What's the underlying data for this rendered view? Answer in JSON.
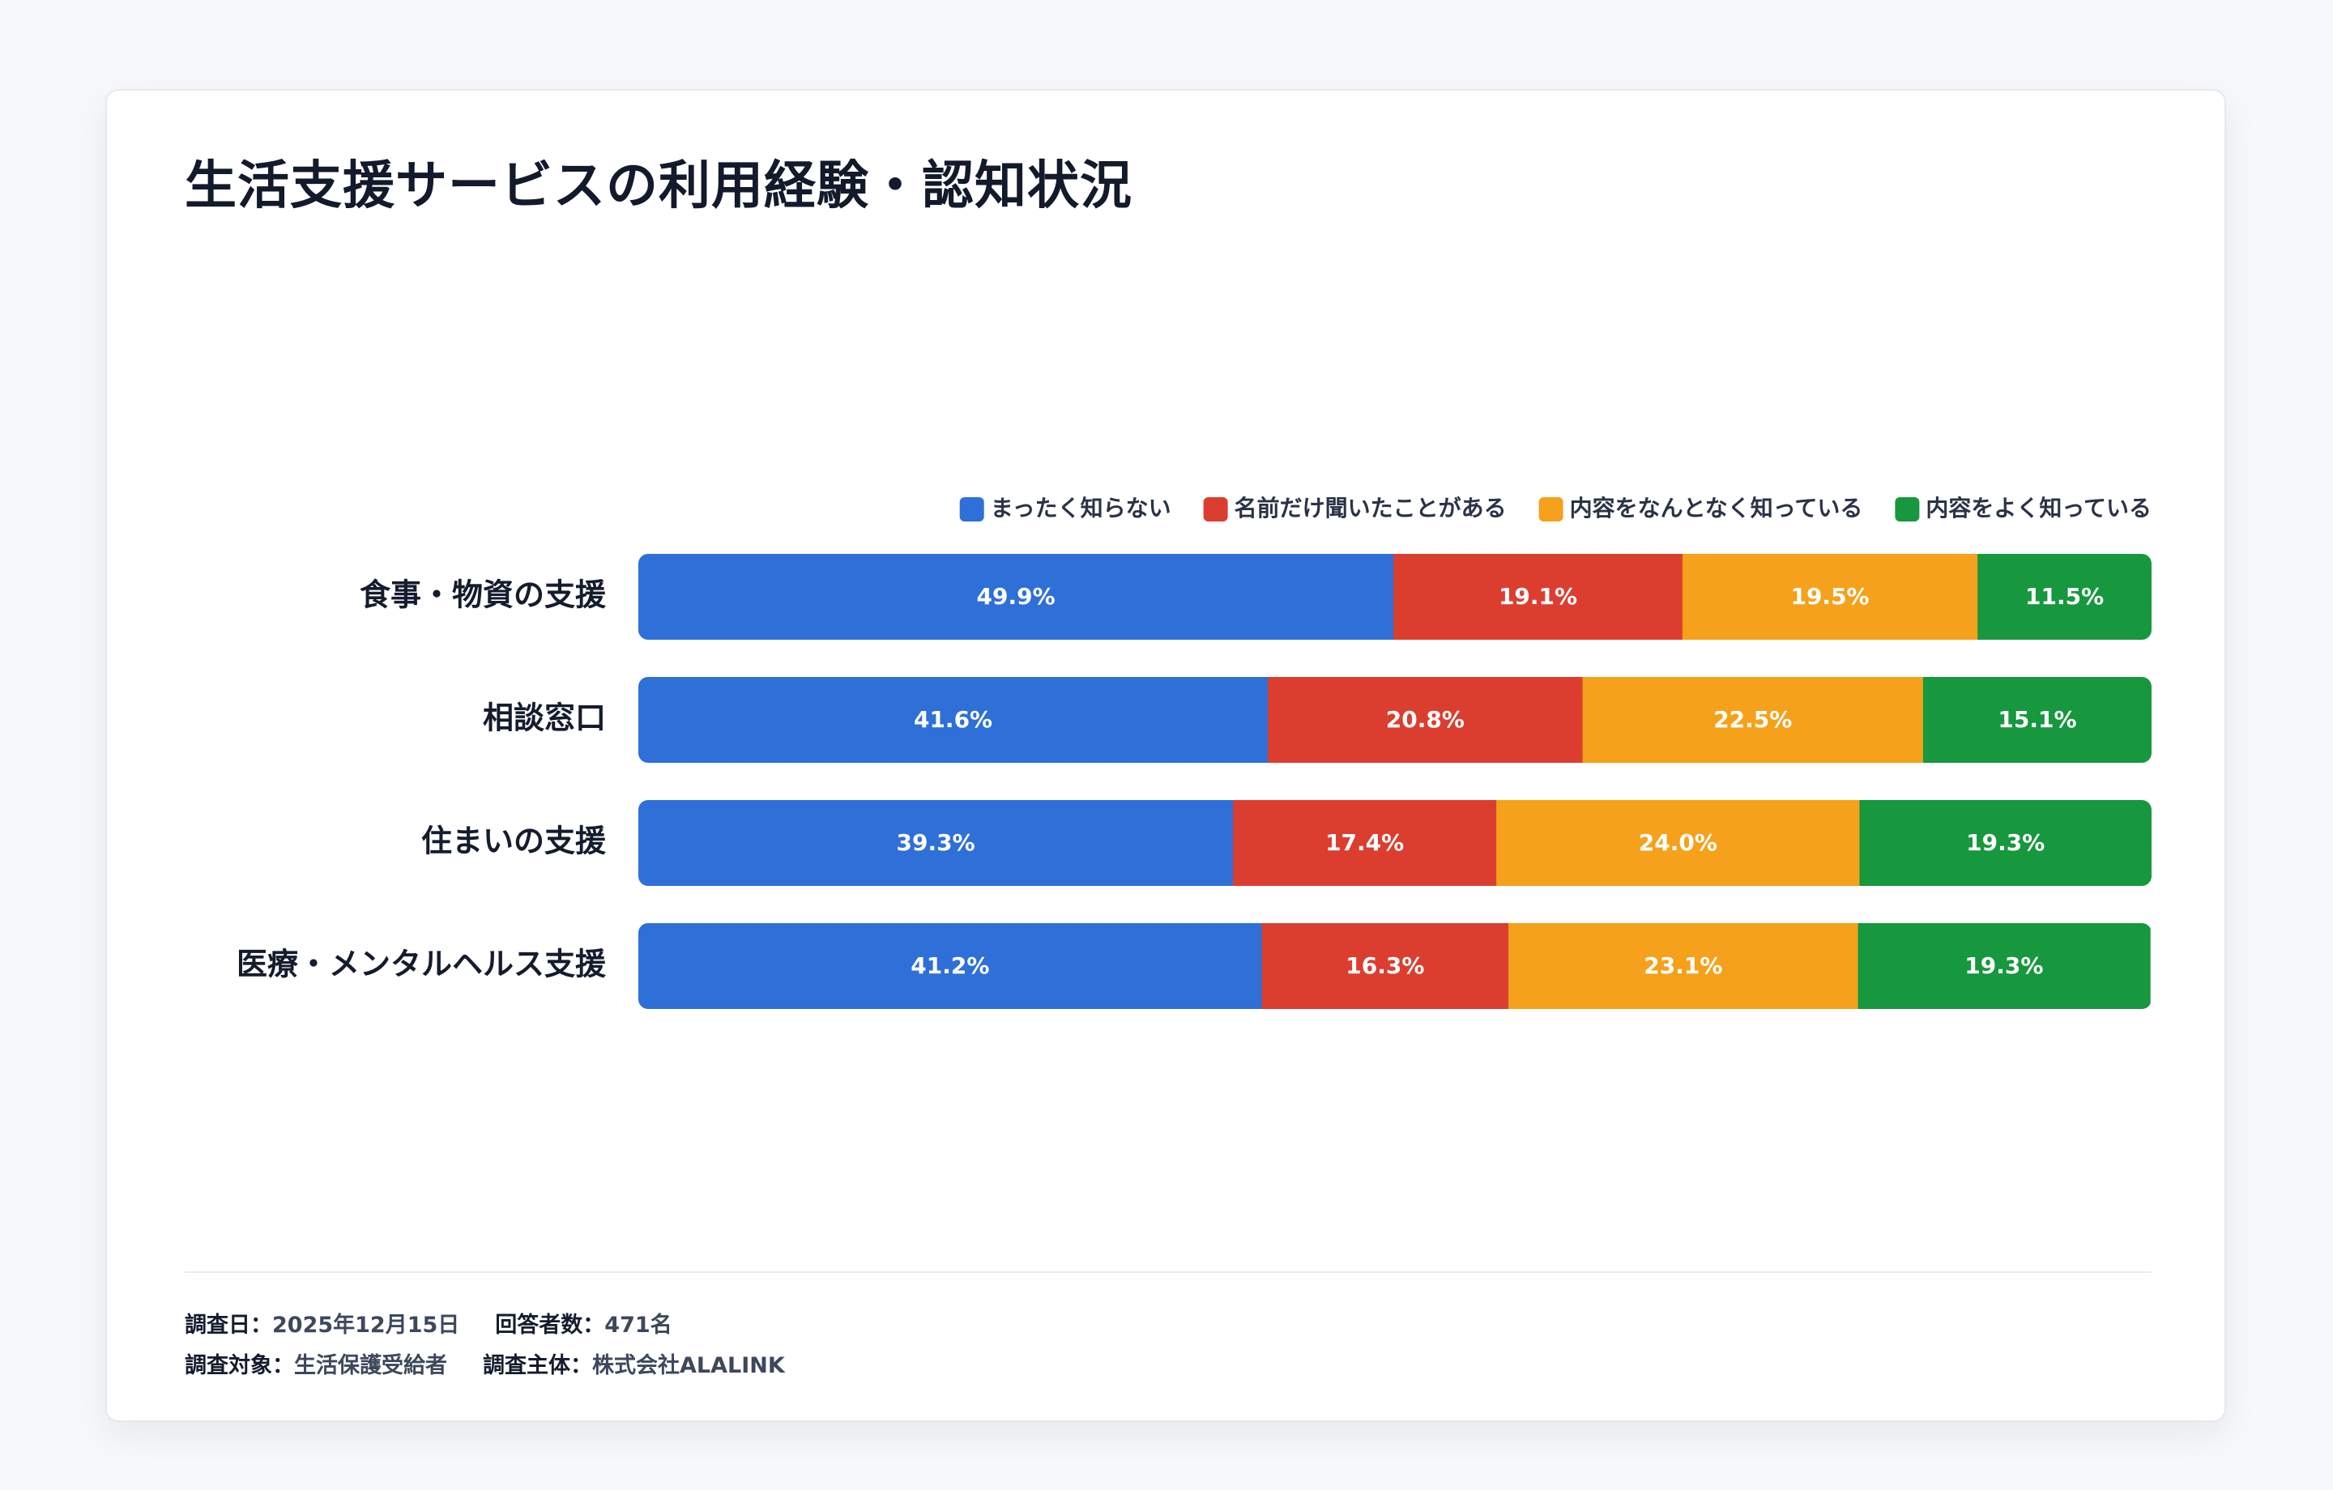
{
  "title": "生活支援サービスの利用経験・認知状況",
  "chart_data": {
    "type": "bar",
    "orientation": "horizontal",
    "stacked": true,
    "unit": "%",
    "xlim": [
      0,
      100
    ],
    "grid": false,
    "legend_position": "top-right",
    "categories": [
      "食事・物資の支援",
      "相談窓口",
      "住まいの支援",
      "医療・メンタルヘルス支援"
    ],
    "series": [
      {
        "name": "まったく知らない",
        "color": "#2f6fd8",
        "values": [
          49.9,
          41.6,
          39.3,
          41.2
        ]
      },
      {
        "name": "名前だけ聞いたことがある",
        "color": "#db3e2f",
        "values": [
          19.1,
          20.8,
          17.4,
          16.3
        ]
      },
      {
        "name": "内容をなんとなく知っている",
        "color": "#f5a11b",
        "values": [
          19.5,
          22.5,
          24.0,
          23.1
        ]
      },
      {
        "name": "内容をよく知っている",
        "color": "#17973e",
        "values": [
          11.5,
          15.1,
          19.3,
          19.3
        ]
      }
    ]
  },
  "footer": {
    "sep": "：",
    "rows": [
      [
        {
          "key": "調査日",
          "value": "2025年12月15日"
        },
        {
          "key": "回答者数",
          "value": "471名"
        }
      ],
      [
        {
          "key": "調査対象",
          "value": "生活保護受給者"
        },
        {
          "key": "調査主体",
          "value": "株式会社ALALINK"
        }
      ]
    ]
  }
}
